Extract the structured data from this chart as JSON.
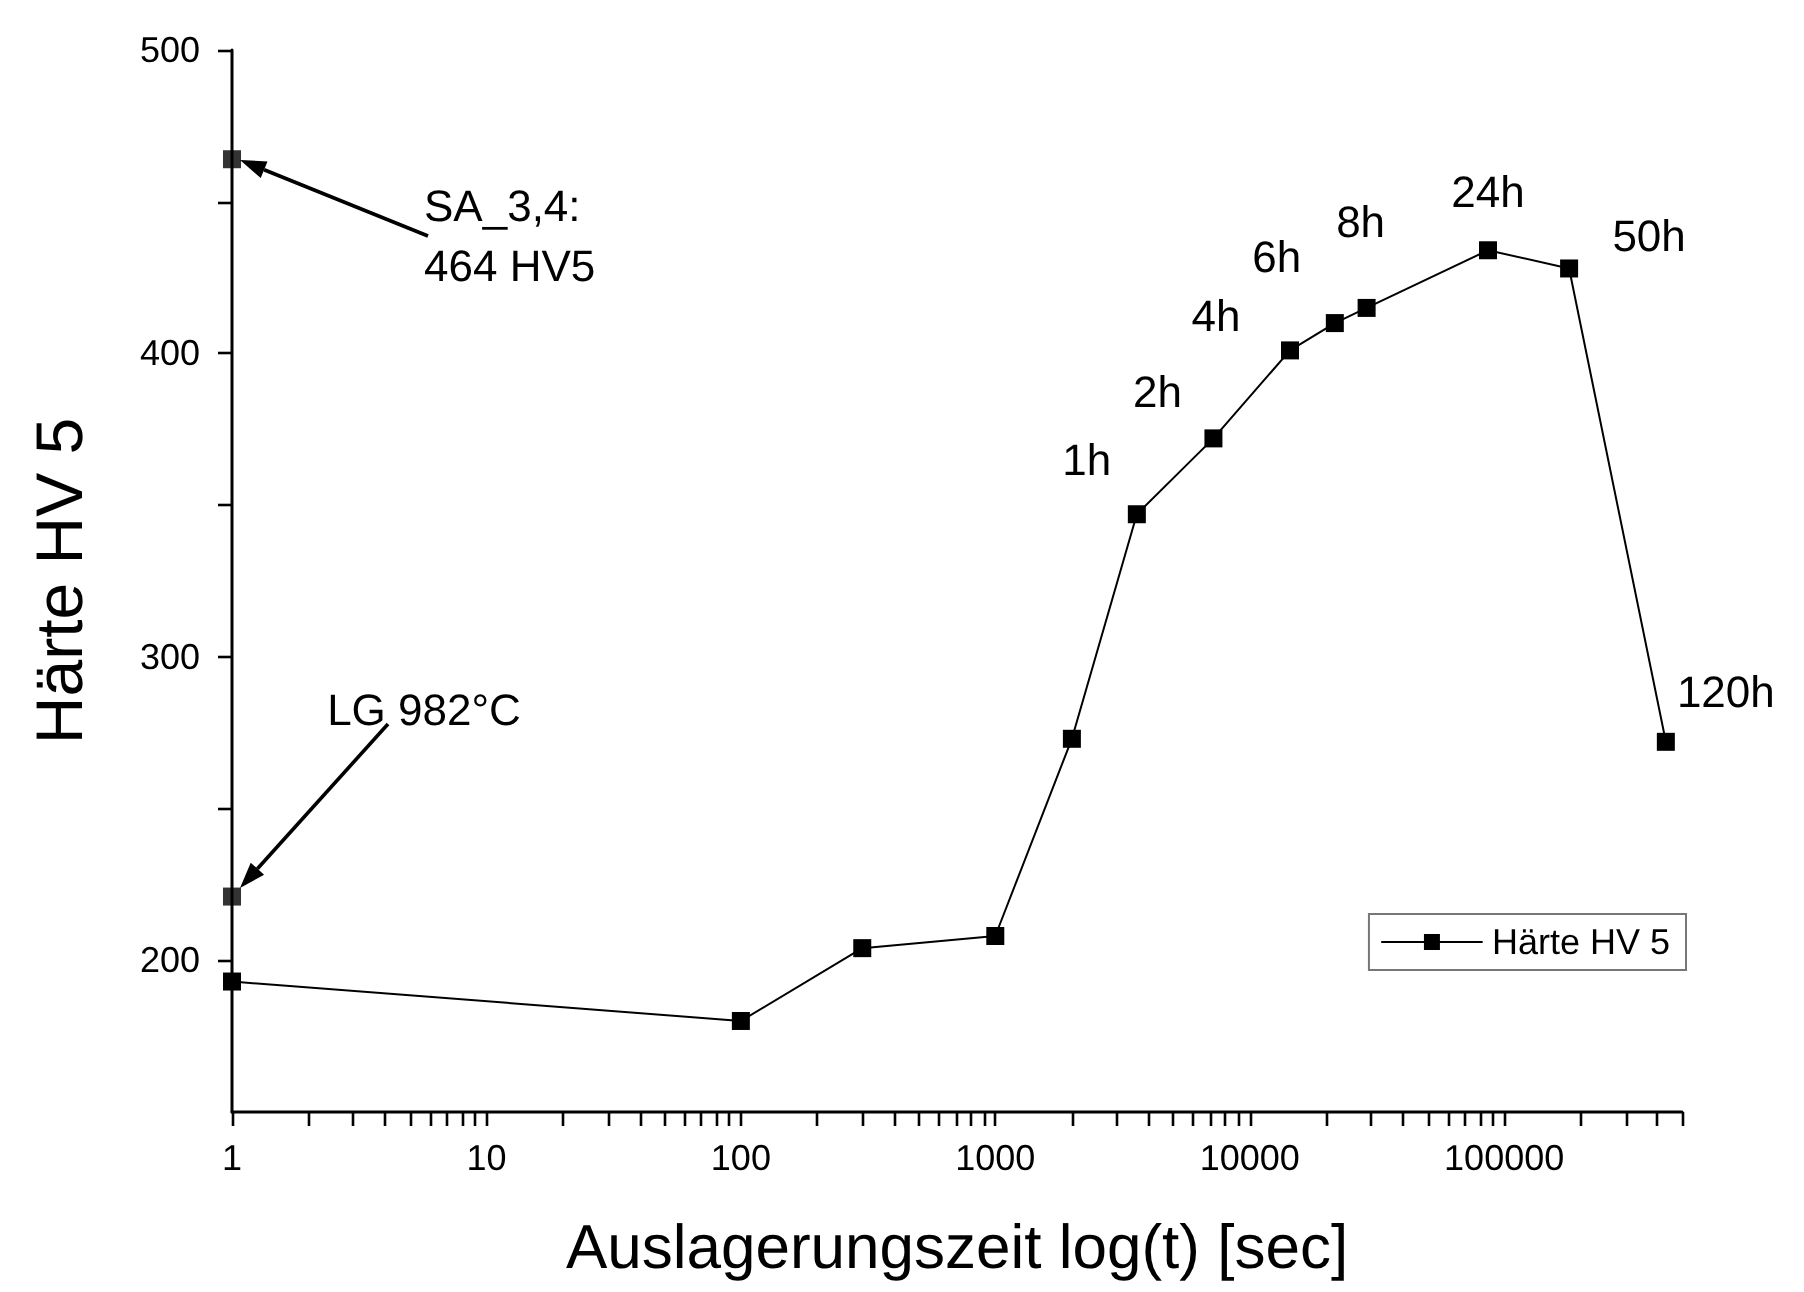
{
  "chart_data": {
    "type": "line",
    "xlabel": "Auslagerungszeit log(t) [sec]",
    "ylabel": "Härte HV 5",
    "series": [
      {
        "name": "Härte HV 5",
        "color": "#000000",
        "x": [
          1,
          100,
          300,
          1000,
          2000,
          3600,
          7200,
          14400,
          21600,
          28800,
          86400,
          180000,
          432000
        ],
        "values": [
          193,
          180,
          204,
          208,
          273,
          347,
          372,
          401,
          410,
          415,
          434,
          428,
          272
        ]
      },
      {
        "type": "scatter",
        "color": "#000000",
        "x": [
          1,
          1
        ],
        "values": [
          464,
          221
        ]
      }
    ],
    "log": "x",
    "xlim": [
      1,
      500000
    ],
    "xticks": [
      1,
      {
        "value": 2,
        "label": null
      },
      {
        "value": 3,
        "label": null
      },
      {
        "value": 4,
        "label": null
      },
      {
        "value": 5,
        "label": null
      },
      {
        "value": 6,
        "label": null
      },
      {
        "value": 7,
        "label": null
      },
      {
        "value": 8,
        "label": null
      },
      {
        "value": 9,
        "label": null
      },
      10,
      {
        "value": 20,
        "label": null
      },
      {
        "value": 30,
        "label": null
      },
      {
        "value": 40,
        "label": null
      },
      {
        "value": 50,
        "label": null
      },
      {
        "value": 60,
        "label": null
      },
      {
        "value": 70,
        "label": null
      },
      {
        "value": 80,
        "label": null
      },
      {
        "value": 90,
        "label": null
      },
      100,
      {
        "value": 200,
        "label": null
      },
      {
        "value": 300,
        "label": null
      },
      {
        "value": 400,
        "label": null
      },
      {
        "value": 500,
        "label": null
      },
      {
        "value": 600,
        "label": null
      },
      {
        "value": 700,
        "label": null
      },
      {
        "value": 800,
        "label": null
      },
      {
        "value": 900,
        "label": null
      },
      1000,
      {
        "value": 2000,
        "label": null
      },
      {
        "value": 3000,
        "label": null
      },
      {
        "value": 4000,
        "label": null
      },
      {
        "value": 5000,
        "label": null
      },
      {
        "value": 6000,
        "label": null
      },
      {
        "value": 7000,
        "label": null
      },
      {
        "value": 8000,
        "label": null
      },
      {
        "value": 9000,
        "label": null
      },
      10000,
      {
        "value": 20000,
        "label": null
      },
      {
        "value": 30000,
        "label": null
      },
      {
        "value": 40000,
        "label": null
      },
      {
        "value": 50000,
        "label": null
      },
      {
        "value": 60000,
        "label": null
      },
      {
        "value": 70000,
        "label": null
      },
      {
        "value": 80000,
        "label": null
      },
      {
        "value": 90000,
        "label": null
      },
      100000,
      {
        "value": 200000,
        "label": null
      },
      {
        "value": 300000,
        "label": null
      },
      {
        "value": 400000,
        "label": null
      },
      {
        "value": 500000,
        "label": null
      }
    ],
    "ylim": [
      150,
      500
    ],
    "yticks": [
      200,
      {
        "value": 250,
        "label": null
      },
      300,
      {
        "value": 350,
        "label": null
      },
      400,
      {
        "value": 450,
        "label": null
      },
      500
    ],
    "grid": false,
    "legend": "bottom right",
    "marker": "square",
    "line_style": "solid",
    "annotations": [
      "SA_3,4: 464 HV5",
      "LG 982°C",
      {
        "text": "1h",
        "x": 3600,
        "y": 347
      },
      {
        "text": "2h",
        "x": 7200,
        "y": 372
      },
      {
        "text": "4h",
        "x": 14400,
        "y": 401
      },
      {
        "text": "6h",
        "x": 21600,
        "y": 410
      },
      {
        "text": "8h",
        "x": 28800,
        "y": 415
      },
      {
        "text": "24h",
        "x": 86400,
        "y": 434
      },
      {
        "text": "50h",
        "x": 180000,
        "y": 428
      },
      {
        "text": "120h",
        "x": 432000,
        "y": 272
      }
    ]
  }
}
